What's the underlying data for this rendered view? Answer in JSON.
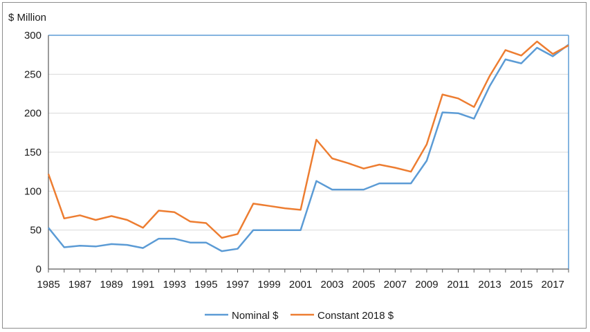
{
  "chart_data": {
    "type": "line",
    "title": "",
    "ylabel": "$ Million",
    "xlabel": "",
    "ylim": [
      0,
      300
    ],
    "yticks": [
      0,
      50,
      100,
      150,
      200,
      250,
      300
    ],
    "xticks": [
      1985,
      1987,
      1989,
      1991,
      1993,
      1995,
      1997,
      1999,
      2001,
      2003,
      2005,
      2007,
      2009,
      2011,
      2013,
      2015,
      2017
    ],
    "x": [
      1985,
      1986,
      1987,
      1988,
      1989,
      1990,
      1991,
      1992,
      1993,
      1994,
      1995,
      1996,
      1997,
      1998,
      1999,
      2000,
      2001,
      2002,
      2003,
      2004,
      2005,
      2006,
      2007,
      2008,
      2009,
      2010,
      2011,
      2012,
      2013,
      2014,
      2015,
      2016,
      2017,
      2018
    ],
    "grid": true,
    "legend_position": "bottom",
    "series": [
      {
        "name": "Nominal $",
        "color": "#5b9bd5",
        "values": [
          53,
          28,
          30,
          29,
          32,
          31,
          27,
          39,
          39,
          34,
          34,
          23,
          26,
          50,
          50,
          50,
          50,
          113,
          102,
          102,
          102,
          110,
          110,
          110,
          139,
          201,
          200,
          193,
          235,
          269,
          264,
          284,
          273,
          288
        ]
      },
      {
        "name": "Constant 2018 $",
        "color": "#ed7d31",
        "values": [
          122,
          65,
          69,
          63,
          68,
          63,
          53,
          75,
          73,
          61,
          59,
          40,
          45,
          84,
          81,
          78,
          76,
          166,
          142,
          136,
          129,
          134,
          130,
          125,
          160,
          224,
          219,
          208,
          248,
          281,
          274,
          292,
          276,
          287
        ]
      }
    ]
  }
}
